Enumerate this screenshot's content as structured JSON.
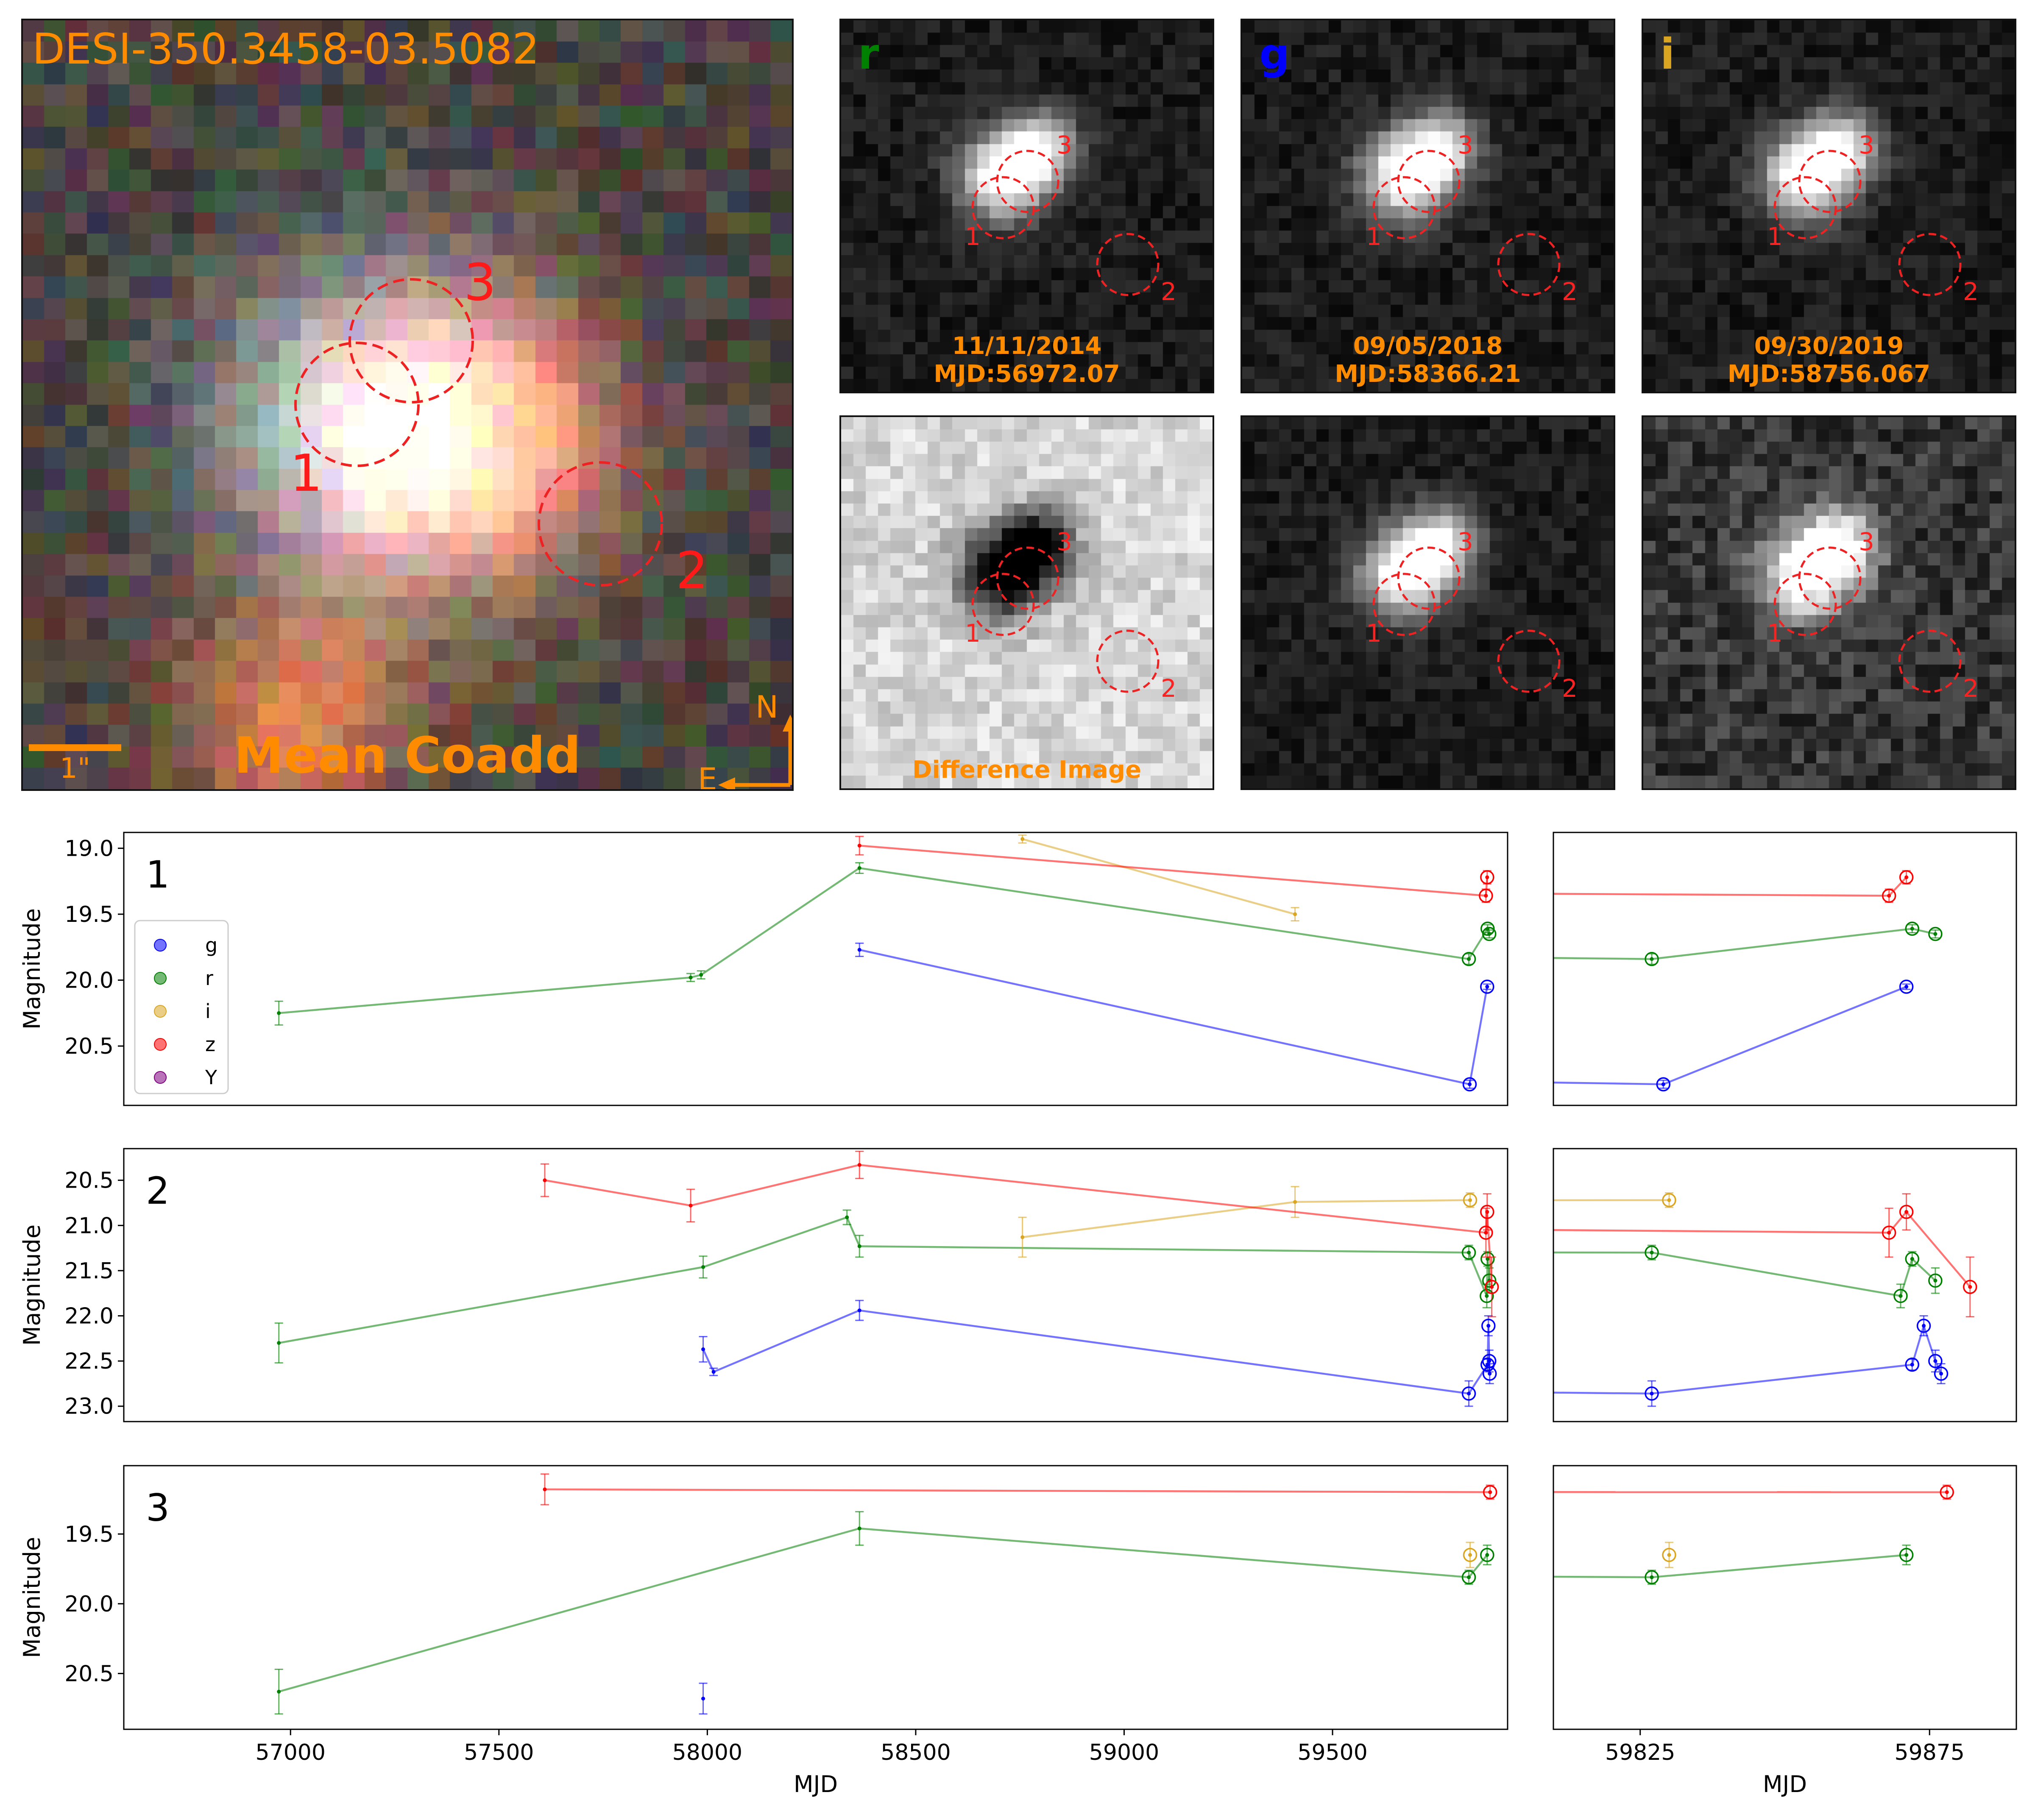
{
  "header": {
    "object_name": "DESI-350.3458-03.5082",
    "coadd_label": "Mean Coadd",
    "scale_label": "1\"",
    "north_label": "N",
    "east_label": "E"
  },
  "cutouts": {
    "bands": [
      {
        "band": "r",
        "color": "#008000",
        "date": "11/11/2014",
        "mjd": "MJD:56972.07"
      },
      {
        "band": "g",
        "color": "#0000ff",
        "date": "09/05/2018",
        "mjd": "MJD:58366.21"
      },
      {
        "band": "i",
        "color": "#daa520",
        "date": "09/30/2019",
        "mjd": "MJD:58756.067"
      }
    ],
    "difference_label": "Difference Image",
    "aperture_labels": [
      "1",
      "2",
      "3"
    ]
  },
  "colors": {
    "g": "#0000ff",
    "r": "#008000",
    "i": "#daa520",
    "z": "#ff0000",
    "Y": "#800080",
    "annotation": "#ff8c00",
    "aperture": "#ee2222"
  },
  "chart_data": [
    {
      "type": "line",
      "panel": "1",
      "title": "1",
      "xlabel": "MJD",
      "ylabel": "Magnitude",
      "xlim": [
        56600,
        59920
      ],
      "ylim": [
        20.95,
        18.88
      ],
      "yticks": [
        19.0,
        19.5,
        20.0,
        20.5
      ],
      "inset_xlim": [
        59810,
        59890
      ],
      "legend": [
        "g",
        "r",
        "i",
        "z",
        "Y"
      ],
      "series": [
        {
          "name": "g",
          "points": [
            [
              58365,
              19.77,
              0.05
            ],
            [
              59829,
              20.79,
              0.03
            ],
            [
              59871,
              20.05,
              0.02
            ]
          ]
        },
        {
          "name": "r",
          "points": [
            [
              56972,
              20.25,
              0.09
            ],
            [
              57960,
              19.98,
              0.03
            ],
            [
              57985,
              19.96,
              0.03
            ],
            [
              58365,
              19.15,
              0.04
            ],
            [
              59827,
              19.84,
              0.04
            ],
            [
              59872,
              19.61,
              0.03
            ],
            [
              59876,
              19.65,
              0.03
            ]
          ]
        },
        {
          "name": "i",
          "points": [
            [
              58756,
              18.93,
              0.03
            ],
            [
              59410,
              19.5,
              0.05
            ]
          ]
        },
        {
          "name": "z",
          "points": [
            [
              58365,
              18.98,
              0.07
            ],
            [
              59868,
              19.36,
              0.05
            ],
            [
              59871,
              19.22,
              0.05
            ]
          ]
        }
      ]
    },
    {
      "type": "line",
      "panel": "2",
      "title": "2",
      "xlabel": "MJD",
      "ylabel": "Magnitude",
      "xlim": [
        56600,
        59920
      ],
      "ylim": [
        23.17,
        20.15
      ],
      "yticks": [
        20.5,
        21.0,
        21.5,
        22.0,
        22.5,
        23.0
      ],
      "inset_xlim": [
        59810,
        59890
      ],
      "series": [
        {
          "name": "g",
          "points": [
            [
              57990,
              22.37,
              0.14
            ],
            [
              58015,
              22.62,
              0.04
            ],
            [
              58365,
              21.94,
              0.11
            ],
            [
              59827,
              22.86,
              0.14
            ],
            [
              59872,
              22.54,
              0.06
            ],
            [
              59874,
              22.11,
              0.11
            ],
            [
              59876,
              22.5,
              0.12
            ],
            [
              59877,
              22.64,
              0.11
            ]
          ]
        },
        {
          "name": "r",
          "points": [
            [
              56972,
              22.3,
              0.22
            ],
            [
              57990,
              21.46,
              0.12
            ],
            [
              58335,
              20.91,
              0.08
            ],
            [
              58365,
              21.23,
              0.12
            ],
            [
              59827,
              21.3,
              0.08
            ],
            [
              59870,
              21.78,
              0.13
            ],
            [
              59872,
              21.37,
              0.08
            ],
            [
              59876,
              21.61,
              0.14
            ]
          ]
        },
        {
          "name": "i",
          "points": [
            [
              58756,
              21.13,
              0.22
            ],
            [
              59410,
              20.74,
              0.17
            ],
            [
              59830,
              20.72,
              0.08
            ]
          ]
        },
        {
          "name": "z",
          "points": [
            [
              57610,
              20.5,
              0.18
            ],
            [
              57960,
              20.78,
              0.18
            ],
            [
              58365,
              20.33,
              0.15
            ],
            [
              59868,
              21.08,
              0.27
            ],
            [
              59871,
              20.85,
              0.2
            ],
            [
              59882,
              21.68,
              0.33
            ]
          ]
        }
      ]
    },
    {
      "type": "line",
      "panel": "3",
      "title": "3",
      "xlabel": "MJD",
      "ylabel": "Magnitude",
      "xlim": [
        56600,
        59920
      ],
      "ylim": [
        20.9,
        19.01
      ],
      "yticks": [
        19.5,
        20.0,
        20.5
      ],
      "inset_xlim": [
        59810,
        59890
      ],
      "xticks": [
        57000,
        57500,
        58000,
        58500,
        59000,
        59500
      ],
      "inset_xticks": [
        59825,
        59875
      ],
      "series": [
        {
          "name": "g",
          "points": [
            [
              57990,
              20.68,
              0.11
            ]
          ]
        },
        {
          "name": "r",
          "points": [
            [
              56972,
              20.63,
              0.16
            ],
            [
              58365,
              19.46,
              0.12
            ],
            [
              59827,
              19.81,
              0.05
            ],
            [
              59871,
              19.65,
              0.07
            ]
          ]
        },
        {
          "name": "i",
          "points": [
            [
              59830,
              19.65,
              0.09
            ]
          ]
        },
        {
          "name": "z",
          "points": [
            [
              57610,
              19.18,
              0.11
            ],
            [
              59878,
              19.2,
              0.05
            ]
          ]
        }
      ]
    }
  ]
}
